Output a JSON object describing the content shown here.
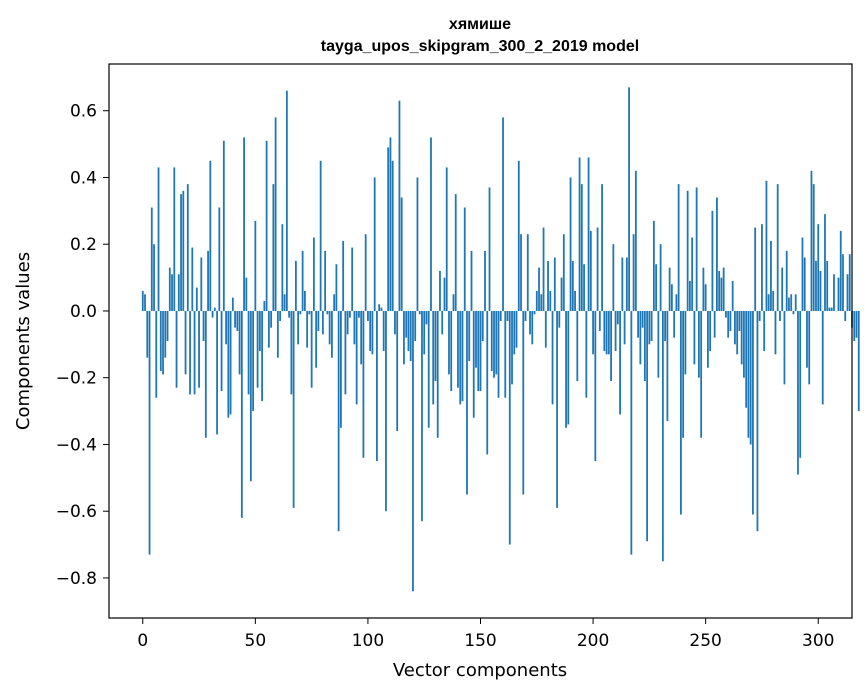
{
  "chart_data": {
    "type": "bar",
    "title": "хямише",
    "subtitle": "tayga_upos_skipgram_300_2_2019 model",
    "xlabel": "Vector components",
    "ylabel": "Components values",
    "xlim": [
      -15,
      315
    ],
    "ylim": [
      -0.92,
      0.74
    ],
    "xticks": [
      0,
      50,
      100,
      150,
      200,
      250,
      300
    ],
    "yticks": [
      -0.8,
      -0.6,
      -0.4,
      -0.2,
      0.0,
      0.2,
      0.4,
      0.6
    ],
    "ytick_labels": [
      "−0.8",
      "−0.6",
      "−0.4",
      "−0.2",
      "0.0",
      "0.2",
      "0.4",
      "0.6"
    ],
    "bar_color": "#1f77b4",
    "values": [
      0.06,
      0.05,
      -0.14,
      -0.73,
      0.31,
      0.2,
      -0.26,
      0.43,
      -0.18,
      -0.19,
      -0.14,
      -0.09,
      0.13,
      0.11,
      0.43,
      -0.23,
      0.11,
      0.35,
      0.36,
      -0.19,
      0.38,
      -0.25,
      0.19,
      -0.25,
      0.07,
      -0.23,
      0.16,
      -0.09,
      -0.38,
      0.18,
      0.45,
      -0.02,
      0.01,
      -0.37,
      0.31,
      -0.24,
      0.51,
      -0.1,
      -0.32,
      -0.31,
      0.04,
      -0.05,
      -0.06,
      -0.19,
      -0.62,
      0.52,
      0.1,
      -0.25,
      -0.51,
      -0.3,
      0.27,
      -0.23,
      -0.12,
      -0.27,
      0.03,
      0.51,
      -0.11,
      -0.05,
      0.38,
      0.58,
      -0.14,
      -0.03,
      0.26,
      0.05,
      0.66,
      -0.02,
      -0.25,
      -0.59,
      0.15,
      -0.1,
      -0.01,
      0.18,
      0.06,
      -0.11,
      -0.01,
      -0.23,
      0.22,
      -0.17,
      -0.06,
      0.45,
      -0.07,
      0.18,
      -0.01,
      -0.1,
      -0.14,
      0.05,
      0.14,
      -0.66,
      -0.35,
      0.21,
      -0.25,
      -0.07,
      -0.02,
      0.19,
      -0.1,
      -0.28,
      -0.02,
      -0.16,
      -0.44,
      0.23,
      -0.03,
      -0.12,
      -0.13,
      0.4,
      -0.45,
      0.02,
      0.01,
      -0.12,
      -0.6,
      0.49,
      0.52,
      0.45,
      -0.07,
      -0.36,
      0.63,
      0.34,
      -0.16,
      -0.08,
      -0.12,
      -0.15,
      -0.84,
      -0.09,
      0.4,
      -0.01,
      -0.63,
      -0.13,
      -0.04,
      -0.35,
      0.52,
      -0.28,
      -0.21,
      -0.38,
      0.12,
      -0.07,
      0.1,
      0.43,
      -0.19,
      -0.24,
      0.05,
      0.35,
      -0.23,
      -0.28,
      -0.27,
      0.31,
      -0.55,
      -0.15,
      0.18,
      -0.32,
      -0.17,
      -0.24,
      -0.24,
      -0.09,
      0.18,
      -0.43,
      0.37,
      -0.18,
      -0.2,
      -0.19,
      -0.26,
      -0.03,
      0.58,
      -0.26,
      -0.03,
      -0.7,
      -0.22,
      -0.13,
      -0.11,
      0.45,
      0.23,
      -0.55,
      -0.03,
      0.23,
      -0.07,
      -0.1,
      -0.01,
      0.06,
      0.13,
      0.05,
      0.25,
      -0.11,
      0.15,
      0.06,
      -0.28,
      0.16,
      -0.59,
      -0.05,
      0.1,
      0.23,
      -0.35,
      -0.34,
      0.4,
      0.15,
      0.06,
      -0.21,
      0.46,
      0.38,
      0.14,
      -0.26,
      0.46,
      0.24,
      -0.13,
      -0.45,
      0.25,
      -0.06,
      0.38,
      -0.12,
      -0.13,
      -0.13,
      -0.21,
      0.2,
      -0.12,
      -0.04,
      -0.31,
      0.16,
      -0.1,
      0.16,
      0.67,
      -0.73,
      0.23,
      0.42,
      -0.08,
      -0.16,
      -0.05,
      -0.21,
      -0.69,
      -0.1,
      -0.09,
      0.27,
      0.14,
      -0.2,
      0.2,
      -0.75,
      -0.09,
      -0.33,
      0.13,
      0.08,
      -0.08,
      0.05,
      0.38,
      -0.61,
      -0.38,
      -0.19,
      0.36,
      0.09,
      0.22,
      -0.16,
      0.37,
      -0.2,
      -0.38,
      0.13,
      0.08,
      -0.17,
      -0.12,
      0.3,
      -0.08,
      0.34,
      0.12,
      0.1,
      0.13,
      -0.02,
      -0.08,
      -0.06,
      0.09,
      -0.1,
      -0.13,
      -0.06,
      -0.16,
      -0.2,
      -0.29,
      -0.38,
      -0.4,
      -0.61,
      0.25,
      -0.66,
      -0.03,
      0.26,
      -0.12,
      0.39,
      0.05,
      0.21,
      0.06,
      -0.13,
      0.38,
      -0.03,
      0.13,
      -0.22,
      0.18,
      0.04,
      0.05,
      -0.01,
      0.05,
      -0.49,
      -0.44,
      0.22,
      0.16,
      -0.17,
      -0.22,
      0.42,
      0.38,
      0.15,
      0.26,
      0.12,
      -0.28,
      0.29,
      0.15,
      0.01,
      0.01,
      0.11,
      0.0,
      0.1,
      0.24,
      0.17,
      -0.03,
      0.11,
      0.17,
      -0.05,
      -0.09,
      -0.08,
      -0.3
    ]
  }
}
